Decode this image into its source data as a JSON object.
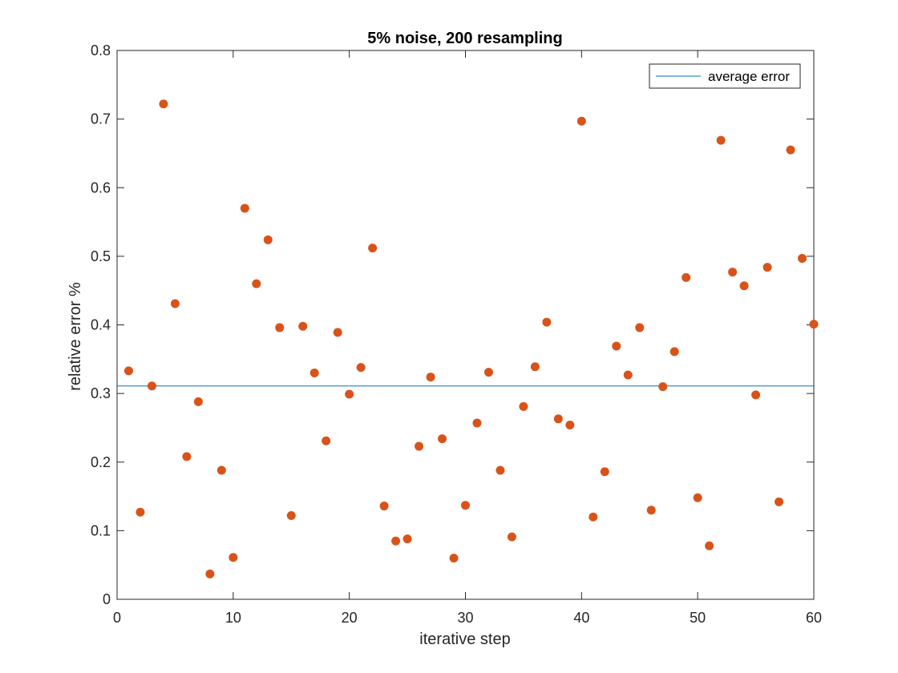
{
  "chart_data": {
    "type": "scatter",
    "title": "5% noise, 200 resampling",
    "xlabel": "iterative step",
    "ylabel": "relative error %",
    "xlim": [
      0,
      60
    ],
    "ylim": [
      0,
      0.8
    ],
    "xticks": [
      0,
      10,
      20,
      30,
      40,
      50,
      60
    ],
    "yticks": [
      0,
      0.1,
      0.2,
      0.3,
      0.4,
      0.5,
      0.6,
      0.7,
      0.8
    ],
    "xtick_labels": [
      "0",
      "10",
      "20",
      "30",
      "40",
      "50",
      "60"
    ],
    "ytick_labels": [
      "0",
      "0.1",
      "0.2",
      "0.3",
      "0.4",
      "0.5",
      "0.6",
      "0.7",
      "0.8"
    ],
    "grid": false,
    "legend_position": "top-right",
    "series": [
      {
        "kind": "scatter",
        "color": "#D95319",
        "x": [
          1,
          2,
          3,
          4,
          5,
          6,
          7,
          8,
          9,
          10,
          11,
          12,
          13,
          14,
          15,
          16,
          17,
          18,
          19,
          20,
          21,
          22,
          23,
          24,
          25,
          26,
          27,
          28,
          29,
          30,
          31,
          32,
          33,
          34,
          35,
          36,
          37,
          38,
          39,
          40,
          41,
          42,
          43,
          44,
          45,
          46,
          47,
          48,
          49,
          50,
          51,
          52,
          53,
          54,
          55,
          56,
          57,
          58,
          59,
          60
        ],
        "y": [
          0.333,
          0.127,
          0.311,
          0.722,
          0.431,
          0.208,
          0.288,
          0.037,
          0.188,
          0.061,
          0.57,
          0.46,
          0.524,
          0.396,
          0.122,
          0.398,
          0.33,
          0.231,
          0.389,
          0.299,
          0.338,
          0.512,
          0.136,
          0.085,
          0.088,
          0.223,
          0.324,
          0.234,
          0.06,
          0.137,
          0.257,
          0.331,
          0.188,
          0.091,
          0.281,
          0.339,
          0.404,
          0.263,
          0.254,
          0.697,
          0.12,
          0.186,
          0.369,
          0.327,
          0.396,
          0.13,
          0.31,
          0.361,
          0.469,
          0.148,
          0.078,
          0.669,
          0.477,
          0.457,
          0.298,
          0.484,
          0.142,
          0.655,
          0.497,
          0.401
        ]
      },
      {
        "kind": "hline",
        "name": "average error",
        "color": "#0072BD",
        "y": 0.311
      }
    ]
  }
}
